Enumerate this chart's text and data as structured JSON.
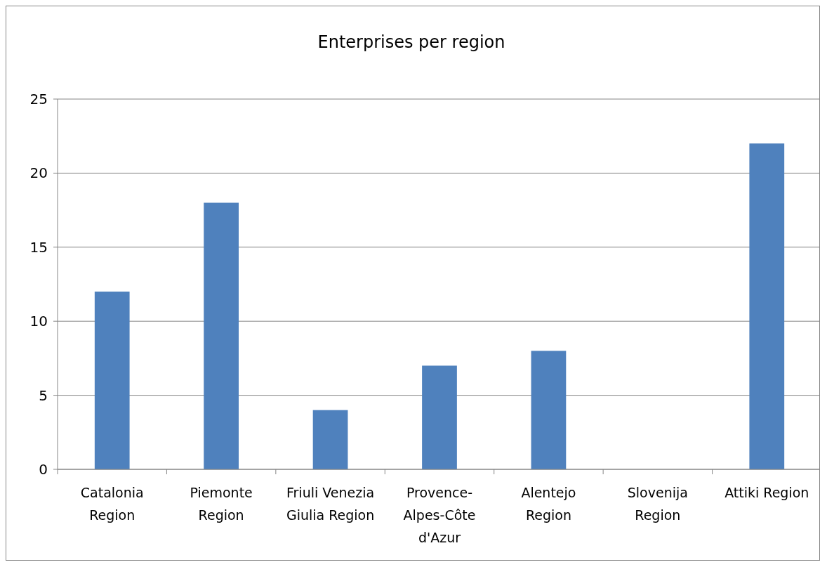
{
  "chart_data": {
    "type": "bar",
    "title": "Enterprises per region",
    "categories": [
      "Catalonia Region",
      "Piemonte Region",
      "Friuli Venezia Giulia Region",
      "Provence-Alpes-Côte d'Azur",
      "Alentejo Region",
      "Slovenija Region",
      "Attiki Region"
    ],
    "values": [
      12,
      18,
      4,
      7,
      8,
      0,
      22
    ],
    "color": "#4f81bd",
    "ylim": [
      0,
      25
    ],
    "yticks": [
      0,
      5,
      10,
      15,
      20,
      25
    ],
    "grid": "y"
  }
}
